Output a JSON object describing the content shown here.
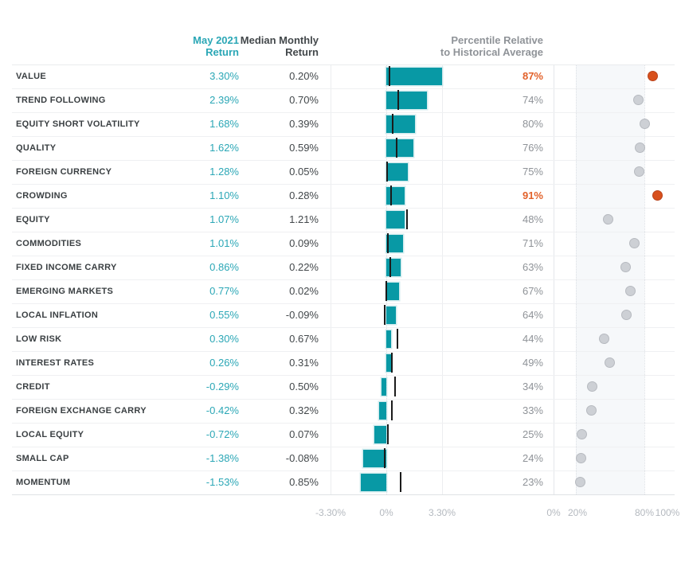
{
  "columns": {
    "may": {
      "line1": "May 2021",
      "line2": "Return"
    },
    "median": {
      "line1": "Median Monthly",
      "line2": "Return"
    },
    "percentile": {
      "line1": "Percentile Relative",
      "line2": "to Historical Average"
    }
  },
  "colors": {
    "bar_teal": "#0899A5",
    "value_teal": "#2BA7B6",
    "highlight_orange": "#E2612A",
    "dot_orange": "#D8501C",
    "dot_gray": "#CDD0D5",
    "header_gray": "#7E8B9A",
    "label_dark": "#3A3F42",
    "pct_gray": "#8F9398",
    "axis_gray": "#B4B9BF"
  },
  "chart_data": {
    "type": "bar",
    "title": "",
    "legend": "none",
    "bar_axis": {
      "tick_labels": [
        "-3.30%",
        "0%",
        "3.30%"
      ],
      "xlim": [
        -3.3,
        3.3
      ],
      "gridlines": true
    },
    "pct_axis": {
      "tick_labels": [
        "0%",
        "20%",
        "80%",
        "100%"
      ],
      "xlim": [
        0,
        100
      ],
      "shaded_band": [
        20,
        80
      ]
    },
    "rows": [
      {
        "name": "VALUE",
        "may_return": "3.30%",
        "may_value": 3.3,
        "median_return": "0.20%",
        "median_value": 0.2,
        "percentile": "87%",
        "pct_value": 87,
        "highlighted": true
      },
      {
        "name": "TREND FOLLOWING",
        "may_return": "2.39%",
        "may_value": 2.39,
        "median_return": "0.70%",
        "median_value": 0.7,
        "percentile": "74%",
        "pct_value": 74,
        "highlighted": false
      },
      {
        "name": "EQUITY SHORT VOLATILITY",
        "may_return": "1.68%",
        "may_value": 1.68,
        "median_return": "0.39%",
        "median_value": 0.39,
        "percentile": "80%",
        "pct_value": 80,
        "highlighted": false
      },
      {
        "name": "QUALITY",
        "may_return": "1.62%",
        "may_value": 1.62,
        "median_return": "0.59%",
        "median_value": 0.59,
        "percentile": "76%",
        "pct_value": 76,
        "highlighted": false
      },
      {
        "name": "FOREIGN CURRENCY",
        "may_return": "1.28%",
        "may_value": 1.28,
        "median_return": "0.05%",
        "median_value": 0.05,
        "percentile": "75%",
        "pct_value": 75,
        "highlighted": false
      },
      {
        "name": "CROWDING",
        "may_return": "1.10%",
        "may_value": 1.1,
        "median_return": "0.28%",
        "median_value": 0.28,
        "percentile": "91%",
        "pct_value": 91,
        "highlighted": true
      },
      {
        "name": "EQUITY",
        "may_return": "1.07%",
        "may_value": 1.07,
        "median_return": "1.21%",
        "median_value": 1.21,
        "percentile": "48%",
        "pct_value": 48,
        "highlighted": false
      },
      {
        "name": "COMMODITIES",
        "may_return": "1.01%",
        "may_value": 1.01,
        "median_return": "0.09%",
        "median_value": 0.09,
        "percentile": "71%",
        "pct_value": 71,
        "highlighted": false
      },
      {
        "name": "FIXED INCOME CARRY",
        "may_return": "0.86%",
        "may_value": 0.86,
        "median_return": "0.22%",
        "median_value": 0.22,
        "percentile": "63%",
        "pct_value": 63,
        "highlighted": false
      },
      {
        "name": "EMERGING MARKETS",
        "may_return": "0.77%",
        "may_value": 0.77,
        "median_return": "0.02%",
        "median_value": 0.02,
        "percentile": "67%",
        "pct_value": 67,
        "highlighted": false
      },
      {
        "name": "LOCAL INFLATION",
        "may_return": "0.55%",
        "may_value": 0.55,
        "median_return": "-0.09%",
        "median_value": -0.09,
        "percentile": "64%",
        "pct_value": 64,
        "highlighted": false
      },
      {
        "name": "LOW RISK",
        "may_return": "0.30%",
        "may_value": 0.3,
        "median_return": "0.67%",
        "median_value": 0.67,
        "percentile": "44%",
        "pct_value": 44,
        "highlighted": false
      },
      {
        "name": "INTEREST RATES",
        "may_return": "0.26%",
        "may_value": 0.26,
        "median_return": "0.31%",
        "median_value": 0.31,
        "percentile": "49%",
        "pct_value": 49,
        "highlighted": false
      },
      {
        "name": "CREDIT",
        "may_return": "-0.29%",
        "may_value": -0.29,
        "median_return": "0.50%",
        "median_value": 0.5,
        "percentile": "34%",
        "pct_value": 34,
        "highlighted": false
      },
      {
        "name": "FOREIGN EXCHANGE CARRY",
        "may_return": "-0.42%",
        "may_value": -0.42,
        "median_return": "0.32%",
        "median_value": 0.32,
        "percentile": "33%",
        "pct_value": 33,
        "highlighted": false
      },
      {
        "name": "LOCAL EQUITY",
        "may_return": "-0.72%",
        "may_value": -0.72,
        "median_return": "0.07%",
        "median_value": 0.07,
        "percentile": "25%",
        "pct_value": 25,
        "highlighted": false
      },
      {
        "name": "SMALL CAP",
        "may_return": "-1.38%",
        "may_value": -1.38,
        "median_return": "-0.08%",
        "median_value": -0.08,
        "percentile": "24%",
        "pct_value": 24,
        "highlighted": false
      },
      {
        "name": "MOMENTUM",
        "may_return": "-1.53%",
        "may_value": -1.53,
        "median_return": "0.85%",
        "median_value": 0.85,
        "percentile": "23%",
        "pct_value": 23,
        "highlighted": false
      }
    ]
  }
}
